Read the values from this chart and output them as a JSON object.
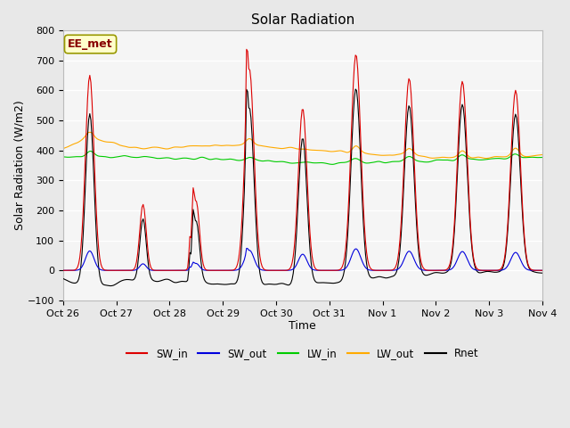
{
  "title": "Solar Radiation",
  "xlabel": "Time",
  "ylabel": "Solar Radiation (W/m2)",
  "ylim": [
    -100,
    800
  ],
  "yticks": [
    -100,
    0,
    100,
    200,
    300,
    400,
    500,
    600,
    700,
    800
  ],
  "fig_bg_color": "#e8e8e8",
  "plot_bg_color": "#f5f5f5",
  "grid_color": "#cccccc",
  "annotation_text": "EE_met",
  "annotation_box_color": "#ffffcc",
  "annotation_border_color": "#999900",
  "colors": {
    "SW_in": "#dd0000",
    "SW_out": "#0000dd",
    "LW_in": "#00cc00",
    "LW_out": "#ffaa00",
    "Rnet": "#000000"
  },
  "tick_labels": [
    "Oct 26",
    "Oct 27",
    "Oct 28",
    "Oct 29",
    "Oct 30",
    "Oct 31",
    "Nov 1",
    "Nov 2",
    "Nov 3",
    "Nov 4"
  ],
  "seed": 42
}
